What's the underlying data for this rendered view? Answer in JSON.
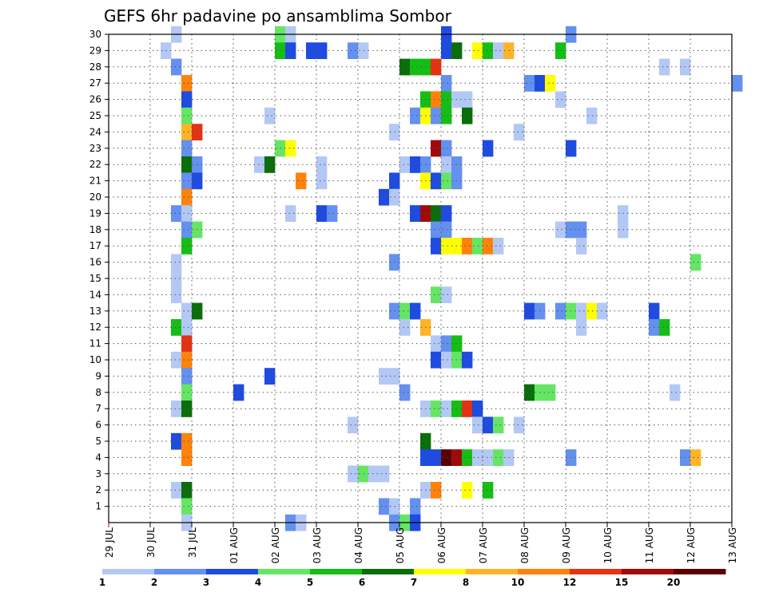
{
  "chart_data": {
    "type": "heatmap",
    "title": "GEFS 6hr padavine po ansamblima Sombor",
    "xlabel": "",
    "ylabel": "",
    "x_tick_labels": [
      "29 JUL",
      "30 JUL",
      "31 JUL",
      "01 AUG",
      "02 AUG",
      "03 AUG",
      "04 AUG",
      "05 AUG",
      "06 AUG",
      "07 AUG",
      "08 AUG",
      "09 AUG",
      "10 AUG",
      "11 AUG",
      "12 AUG",
      "13 AUG"
    ],
    "y_tick_labels": [
      "1",
      "2",
      "3",
      "4",
      "5",
      "6",
      "7",
      "8",
      "9",
      "10",
      "11",
      "12",
      "13",
      "14",
      "15",
      "16",
      "17",
      "18",
      "19",
      "20",
      "21",
      "22",
      "23",
      "24",
      "25",
      "26",
      "27",
      "28",
      "29",
      "30"
    ],
    "x_range": [
      "29 JUL 00",
      "13 AUG 00"
    ],
    "y_range": [
      0,
      30
    ],
    "grid": true,
    "time_step_hours": 6,
    "legend": {
      "placement": "bottom",
      "colors": [
        "#b4c8f5",
        "#6490f0",
        "#1e4be1",
        "#64e664",
        "#14be14",
        "#0a6e0a",
        "#ffff00",
        "#ffb428",
        "#ff820a",
        "#e63214",
        "#a00a0a",
        "#5a0000"
      ],
      "labels": [
        "1",
        "2",
        "3",
        "4",
        "5",
        "6",
        "7",
        "8",
        "10",
        "12",
        "15",
        "20"
      ]
    },
    "levels": [
      1,
      2,
      3,
      4,
      5,
      6,
      7,
      8,
      10,
      12,
      15,
      20
    ],
    "cells": [
      {
        "m": 30,
        "t": "30 JUL 12",
        "v": 1
      },
      {
        "m": 30,
        "t": "02 AUG 00",
        "v": 4
      },
      {
        "m": 30,
        "t": "02 AUG 06",
        "v": 1
      },
      {
        "m": 30,
        "t": "06 AUG 00",
        "v": 3
      },
      {
        "m": 30,
        "t": "09 AUG 00",
        "v": 2
      },
      {
        "m": 29,
        "t": "30 JUL 06",
        "v": 1
      },
      {
        "m": 29,
        "t": "02 AUG 00",
        "v": 5
      },
      {
        "m": 29,
        "t": "02 AUG 06",
        "v": 3
      },
      {
        "m": 29,
        "t": "02 AUG 18",
        "v": 3
      },
      {
        "m": 29,
        "t": "03 AUG 00",
        "v": 3
      },
      {
        "m": 29,
        "t": "03 AUG 18",
        "v": 2
      },
      {
        "m": 29,
        "t": "04 AUG 00",
        "v": 1
      },
      {
        "m": 29,
        "t": "06 AUG 00",
        "v": 3
      },
      {
        "m": 29,
        "t": "06 AUG 06",
        "v": 6
      },
      {
        "m": 29,
        "t": "06 AUG 18",
        "v": 7
      },
      {
        "m": 29,
        "t": "07 AUG 00",
        "v": 5
      },
      {
        "m": 29,
        "t": "07 AUG 06",
        "v": 1
      },
      {
        "m": 29,
        "t": "07 AUG 12",
        "v": 8
      },
      {
        "m": 29,
        "t": "08 AUG 18",
        "v": 5
      },
      {
        "m": 28,
        "t": "30 JUL 12",
        "v": 2
      },
      {
        "m": 28,
        "t": "05 AUG 00",
        "v": 6
      },
      {
        "m": 28,
        "t": "05 AUG 06",
        "v": 5
      },
      {
        "m": 28,
        "t": "05 AUG 12",
        "v": 5
      },
      {
        "m": 28,
        "t": "05 AUG 18",
        "v": 12
      },
      {
        "m": 28,
        "t": "11 AUG 06",
        "v": 1
      },
      {
        "m": 28,
        "t": "11 AUG 18",
        "v": 1
      },
      {
        "m": 27,
        "t": "30 JUL 18",
        "v": 10
      },
      {
        "m": 27,
        "t": "06 AUG 00",
        "v": 2
      },
      {
        "m": 27,
        "t": "08 AUG 00",
        "v": 2
      },
      {
        "m": 27,
        "t": "08 AUG 06",
        "v": 3
      },
      {
        "m": 27,
        "t": "08 AUG 12",
        "v": 7
      },
      {
        "m": 27,
        "t": "13 AUG 00",
        "v": 2
      },
      {
        "m": 26,
        "t": "30 JUL 18",
        "v": 3
      },
      {
        "m": 26,
        "t": "05 AUG 12",
        "v": 5
      },
      {
        "m": 26,
        "t": "05 AUG 18",
        "v": 10
      },
      {
        "m": 26,
        "t": "06 AUG 00",
        "v": 5
      },
      {
        "m": 26,
        "t": "06 AUG 06",
        "v": 1
      },
      {
        "m": 26,
        "t": "06 AUG 12",
        "v": 1
      },
      {
        "m": 26,
        "t": "08 AUG 18",
        "v": 1
      },
      {
        "m": 25,
        "t": "30 JUL 18",
        "v": 4
      },
      {
        "m": 25,
        "t": "01 AUG 18",
        "v": 1
      },
      {
        "m": 25,
        "t": "05 AUG 06",
        "v": 2
      },
      {
        "m": 25,
        "t": "05 AUG 12",
        "v": 7
      },
      {
        "m": 25,
        "t": "05 AUG 18",
        "v": 2
      },
      {
        "m": 25,
        "t": "06 AUG 00",
        "v": 5
      },
      {
        "m": 25,
        "t": "06 AUG 12",
        "v": 6
      },
      {
        "m": 25,
        "t": "09 AUG 12",
        "v": 1
      },
      {
        "m": 24,
        "t": "30 JUL 18",
        "v": 8
      },
      {
        "m": 24,
        "t": "31 JUL 00",
        "v": 12
      },
      {
        "m": 24,
        "t": "04 AUG 18",
        "v": 1
      },
      {
        "m": 24,
        "t": "07 AUG 18",
        "v": 1
      },
      {
        "m": 23,
        "t": "30 JUL 18",
        "v": 2
      },
      {
        "m": 23,
        "t": "02 AUG 00",
        "v": 4
      },
      {
        "m": 23,
        "t": "02 AUG 06",
        "v": 7
      },
      {
        "m": 23,
        "t": "05 AUG 18",
        "v": 15
      },
      {
        "m": 23,
        "t": "06 AUG 00",
        "v": 2
      },
      {
        "m": 23,
        "t": "07 AUG 00",
        "v": 3
      },
      {
        "m": 23,
        "t": "09 AUG 00",
        "v": 3
      },
      {
        "m": 22,
        "t": "30 JUL 18",
        "v": 6
      },
      {
        "m": 22,
        "t": "31 JUL 00",
        "v": 2
      },
      {
        "m": 22,
        "t": "01 AUG 12",
        "v": 1
      },
      {
        "m": 22,
        "t": "01 AUG 18",
        "v": 6
      },
      {
        "m": 22,
        "t": "03 AUG 00",
        "v": 1
      },
      {
        "m": 22,
        "t": "05 AUG 00",
        "v": 1
      },
      {
        "m": 22,
        "t": "05 AUG 06",
        "v": 3
      },
      {
        "m": 22,
        "t": "05 AUG 12",
        "v": 2
      },
      {
        "m": 22,
        "t": "06 AUG 00",
        "v": 1
      },
      {
        "m": 22,
        "t": "06 AUG 06",
        "v": 2
      },
      {
        "m": 21,
        "t": "30 JUL 18",
        "v": 2
      },
      {
        "m": 21,
        "t": "31 JUL 00",
        "v": 3
      },
      {
        "m": 21,
        "t": "02 AUG 12",
        "v": 10
      },
      {
        "m": 21,
        "t": "03 AUG 00",
        "v": 1
      },
      {
        "m": 21,
        "t": "04 AUG 18",
        "v": 3
      },
      {
        "m": 21,
        "t": "05 AUG 12",
        "v": 7
      },
      {
        "m": 21,
        "t": "05 AUG 18",
        "v": 3
      },
      {
        "m": 21,
        "t": "06 AUG 00",
        "v": 4
      },
      {
        "m": 21,
        "t": "06 AUG 06",
        "v": 2
      },
      {
        "m": 20,
        "t": "30 JUL 18",
        "v": 10
      },
      {
        "m": 20,
        "t": "04 AUG 12",
        "v": 3
      },
      {
        "m": 20,
        "t": "04 AUG 18",
        "v": 1
      },
      {
        "m": 19,
        "t": "30 JUL 12",
        "v": 2
      },
      {
        "m": 19,
        "t": "30 JUL 18",
        "v": 1
      },
      {
        "m": 19,
        "t": "02 AUG 06",
        "v": 1
      },
      {
        "m": 19,
        "t": "03 AUG 00",
        "v": 3
      },
      {
        "m": 19,
        "t": "03 AUG 06",
        "v": 2
      },
      {
        "m": 19,
        "t": "05 AUG 06",
        "v": 3
      },
      {
        "m": 19,
        "t": "05 AUG 12",
        "v": 15
      },
      {
        "m": 19,
        "t": "05 AUG 18",
        "v": 6
      },
      {
        "m": 19,
        "t": "06 AUG 00",
        "v": 3
      },
      {
        "m": 19,
        "t": "10 AUG 06",
        "v": 1
      },
      {
        "m": 18,
        "t": "30 JUL 18",
        "v": 2
      },
      {
        "m": 18,
        "t": "31 JUL 00",
        "v": 4
      },
      {
        "m": 18,
        "t": "05 AUG 18",
        "v": 2
      },
      {
        "m": 18,
        "t": "06 AUG 00",
        "v": 2
      },
      {
        "m": 18,
        "t": "08 AUG 18",
        "v": 1
      },
      {
        "m": 18,
        "t": "09 AUG 00",
        "v": 2
      },
      {
        "m": 18,
        "t": "09 AUG 06",
        "v": 2
      },
      {
        "m": 18,
        "t": "10 AUG 06",
        "v": 1
      },
      {
        "m": 17,
        "t": "30 JUL 18",
        "v": 5
      },
      {
        "m": 17,
        "t": "05 AUG 18",
        "v": 3
      },
      {
        "m": 17,
        "t": "06 AUG 00",
        "v": 7
      },
      {
        "m": 17,
        "t": "06 AUG 06",
        "v": 7
      },
      {
        "m": 17,
        "t": "06 AUG 12",
        "v": 10
      },
      {
        "m": 17,
        "t": "06 AUG 18",
        "v": 4
      },
      {
        "m": 17,
        "t": "07 AUG 00",
        "v": 10
      },
      {
        "m": 17,
        "t": "07 AUG 06",
        "v": 1
      },
      {
        "m": 17,
        "t": "09 AUG 06",
        "v": 1
      },
      {
        "m": 16,
        "t": "30 JUL 12",
        "v": 1
      },
      {
        "m": 16,
        "t": "04 AUG 18",
        "v": 2
      },
      {
        "m": 16,
        "t": "12 AUG 00",
        "v": 4
      },
      {
        "m": 15,
        "t": "30 JUL 12",
        "v": 1
      },
      {
        "m": 14,
        "t": "30 JUL 12",
        "v": 1
      },
      {
        "m": 14,
        "t": "05 AUG 18",
        "v": 4
      },
      {
        "m": 14,
        "t": "06 AUG 00",
        "v": 1
      },
      {
        "m": 13,
        "t": "30 JUL 18",
        "v": 1
      },
      {
        "m": 13,
        "t": "31 JUL 00",
        "v": 6
      },
      {
        "m": 13,
        "t": "04 AUG 18",
        "v": 2
      },
      {
        "m": 13,
        "t": "05 AUG 00",
        "v": 4
      },
      {
        "m": 13,
        "t": "05 AUG 06",
        "v": 3
      },
      {
        "m": 13,
        "t": "08 AUG 00",
        "v": 3
      },
      {
        "m": 13,
        "t": "08 AUG 06",
        "v": 2
      },
      {
        "m": 13,
        "t": "08 AUG 18",
        "v": 2
      },
      {
        "m": 13,
        "t": "09 AUG 00",
        "v": 4
      },
      {
        "m": 13,
        "t": "09 AUG 06",
        "v": 1
      },
      {
        "m": 13,
        "t": "09 AUG 12",
        "v": 7
      },
      {
        "m": 13,
        "t": "09 AUG 18",
        "v": 1
      },
      {
        "m": 13,
        "t": "11 AUG 00",
        "v": 3
      },
      {
        "m": 12,
        "t": "30 JUL 12",
        "v": 5
      },
      {
        "m": 12,
        "t": "30 JUL 18",
        "v": 1
      },
      {
        "m": 12,
        "t": "05 AUG 00",
        "v": 1
      },
      {
        "m": 12,
        "t": "05 AUG 12",
        "v": 8
      },
      {
        "m": 12,
        "t": "09 AUG 06",
        "v": 1
      },
      {
        "m": 12,
        "t": "11 AUG 00",
        "v": 2
      },
      {
        "m": 12,
        "t": "11 AUG 06",
        "v": 5
      },
      {
        "m": 11,
        "t": "30 JUL 18",
        "v": 12
      },
      {
        "m": 11,
        "t": "05 AUG 18",
        "v": 1
      },
      {
        "m": 11,
        "t": "06 AUG 00",
        "v": 2
      },
      {
        "m": 11,
        "t": "06 AUG 06",
        "v": 5
      },
      {
        "m": 10,
        "t": "30 JUL 12",
        "v": 1
      },
      {
        "m": 10,
        "t": "30 JUL 18",
        "v": 10
      },
      {
        "m": 10,
        "t": "05 AUG 18",
        "v": 3
      },
      {
        "m": 10,
        "t": "06 AUG 00",
        "v": 1
      },
      {
        "m": 10,
        "t": "06 AUG 06",
        "v": 4
      },
      {
        "m": 10,
        "t": "06 AUG 12",
        "v": 3
      },
      {
        "m": 9,
        "t": "30 JUL 18",
        "v": 2
      },
      {
        "m": 9,
        "t": "01 AUG 18",
        "v": 3
      },
      {
        "m": 9,
        "t": "04 AUG 12",
        "v": 1
      },
      {
        "m": 9,
        "t": "04 AUG 18",
        "v": 1
      },
      {
        "m": 8,
        "t": "30 JUL 18",
        "v": 4
      },
      {
        "m": 8,
        "t": "01 AUG 00",
        "v": 3
      },
      {
        "m": 8,
        "t": "05 AUG 00",
        "v": 2
      },
      {
        "m": 8,
        "t": "08 AUG 00",
        "v": 6
      },
      {
        "m": 8,
        "t": "08 AUG 06",
        "v": 4
      },
      {
        "m": 8,
        "t": "08 AUG 12",
        "v": 4
      },
      {
        "m": 8,
        "t": "11 AUG 12",
        "v": 1
      },
      {
        "m": 7,
        "t": "30 JUL 12",
        "v": 1
      },
      {
        "m": 7,
        "t": "30 JUL 18",
        "v": 6
      },
      {
        "m": 7,
        "t": "05 AUG 12",
        "v": 1
      },
      {
        "m": 7,
        "t": "05 AUG 18",
        "v": 4
      },
      {
        "m": 7,
        "t": "06 AUG 00",
        "v": 1
      },
      {
        "m": 7,
        "t": "06 AUG 06",
        "v": 5
      },
      {
        "m": 7,
        "t": "06 AUG 12",
        "v": 12
      },
      {
        "m": 7,
        "t": "06 AUG 18",
        "v": 3
      },
      {
        "m": 6,
        "t": "03 AUG 18",
        "v": 1
      },
      {
        "m": 6,
        "t": "06 AUG 18",
        "v": 1
      },
      {
        "m": 6,
        "t": "07 AUG 00",
        "v": 3
      },
      {
        "m": 6,
        "t": "07 AUG 06",
        "v": 4
      },
      {
        "m": 6,
        "t": "07 AUG 18",
        "v": 1
      },
      {
        "m": 5,
        "t": "30 JUL 12",
        "v": 3
      },
      {
        "m": 5,
        "t": "30 JUL 18",
        "v": 10
      },
      {
        "m": 5,
        "t": "05 AUG 12",
        "v": 6
      },
      {
        "m": 4,
        "t": "30 JUL 18",
        "v": 10
      },
      {
        "m": 4,
        "t": "05 AUG 12",
        "v": 3
      },
      {
        "m": 4,
        "t": "05 AUG 18",
        "v": 3
      },
      {
        "m": 4,
        "t": "06 AUG 00",
        "v": 20
      },
      {
        "m": 4,
        "t": "06 AUG 06",
        "v": 15
      },
      {
        "m": 4,
        "t": "06 AUG 12",
        "v": 5
      },
      {
        "m": 4,
        "t": "06 AUG 18",
        "v": 1
      },
      {
        "m": 4,
        "t": "07 AUG 00",
        "v": 1
      },
      {
        "m": 4,
        "t": "07 AUG 06",
        "v": 4
      },
      {
        "m": 4,
        "t": "07 AUG 12",
        "v": 1
      },
      {
        "m": 4,
        "t": "09 AUG 00",
        "v": 2
      },
      {
        "m": 4,
        "t": "11 AUG 18",
        "v": 2
      },
      {
        "m": 4,
        "t": "12 AUG 00",
        "v": 8
      },
      {
        "m": 3,
        "t": "03 AUG 18",
        "v": 1
      },
      {
        "m": 3,
        "t": "04 AUG 00",
        "v": 4
      },
      {
        "m": 3,
        "t": "04 AUG 06",
        "v": 1
      },
      {
        "m": 3,
        "t": "04 AUG 12",
        "v": 1
      },
      {
        "m": 2,
        "t": "30 JUL 12",
        "v": 1
      },
      {
        "m": 2,
        "t": "30 JUL 18",
        "v": 6
      },
      {
        "m": 2,
        "t": "05 AUG 12",
        "v": 1
      },
      {
        "m": 2,
        "t": "05 AUG 18",
        "v": 10
      },
      {
        "m": 2,
        "t": "06 AUG 12",
        "v": 7
      },
      {
        "m": 2,
        "t": "07 AUG 00",
        "v": 5
      },
      {
        "m": 1,
        "t": "30 JUL 18",
        "v": 4
      },
      {
        "m": 1,
        "t": "04 AUG 12",
        "v": 2
      },
      {
        "m": 1,
        "t": "04 AUG 18",
        "v": 1
      },
      {
        "m": 1,
        "t": "05 AUG 06",
        "v": 2
      },
      {
        "m": 0,
        "t": "30 JUL 18",
        "v": 1
      },
      {
        "m": 0,
        "t": "02 AUG 06",
        "v": 2
      },
      {
        "m": 0,
        "t": "02 AUG 12",
        "v": 1
      },
      {
        "m": 0,
        "t": "04 AUG 18",
        "v": 2
      },
      {
        "m": 0,
        "t": "05 AUG 00",
        "v": 4
      },
      {
        "m": 0,
        "t": "05 AUG 06",
        "v": 3
      }
    ]
  }
}
